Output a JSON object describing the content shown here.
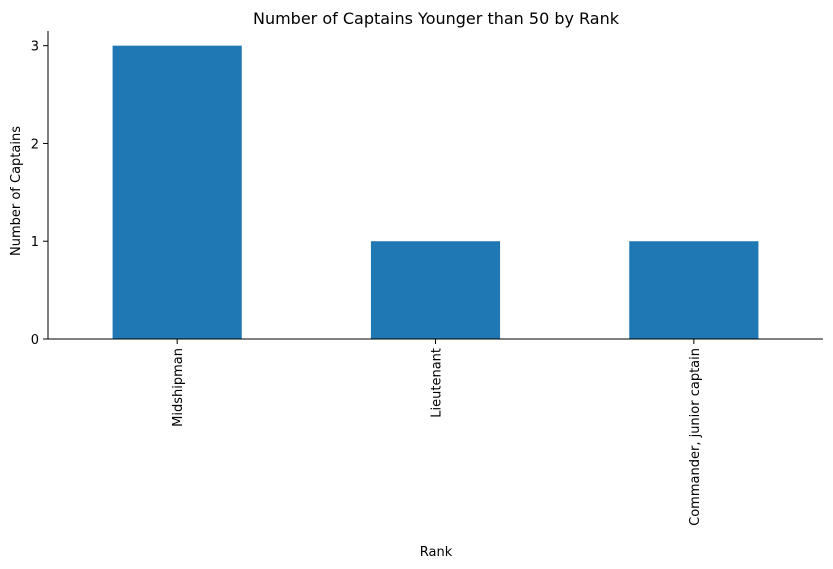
{
  "chart_data": {
    "type": "bar",
    "title": "Number of Captains Younger than 50 by Rank",
    "xlabel": "Rank",
    "ylabel": "Number of Captains",
    "categories": [
      "Midshipman",
      "Lieutenant",
      "Commander, junior captain"
    ],
    "values": [
      3,
      1,
      1
    ],
    "ylim": [
      0,
      3.15
    ],
    "yticks": [
      "0",
      "1",
      "2",
      "3"
    ],
    "grid": false,
    "legend": "none",
    "bar_color": "#1f77b4"
  }
}
